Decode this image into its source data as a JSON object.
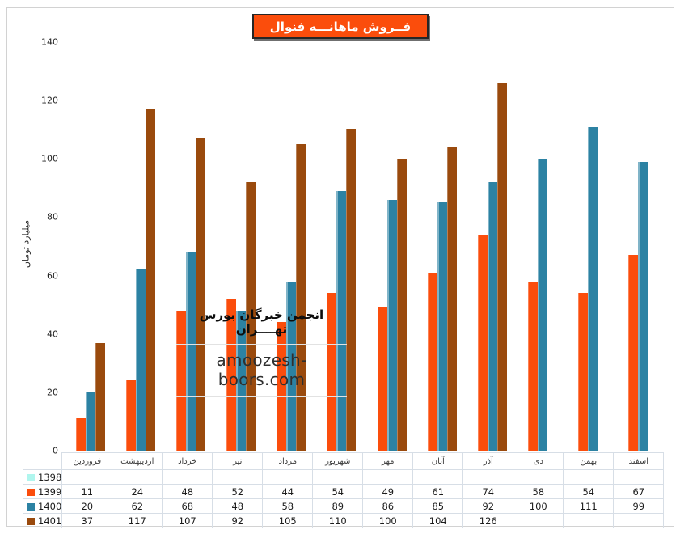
{
  "title": "فــروش ماهانـــه فنوال",
  "y_axis_title": "میلیارد تومان",
  "watermark": {
    "line1": "انجمن خبرگان بورس تهــــران",
    "line2": "amoozesh-boors.com"
  },
  "colors": {
    "title_background": "#fb4d0c",
    "series_1398": "#b0f6ee",
    "series_1399": "#fb4d0c",
    "series_1400": "#2c82a3",
    "series_1401": "#9a4a0d",
    "table_border": "#d7dee6",
    "chart_border": "#d2d2d2"
  },
  "chart_data": {
    "type": "bar",
    "title": "فــروش ماهانـــه فنوال",
    "ylabel": "میلیارد تومان",
    "xlabel": "",
    "ylim": [
      0,
      140
    ],
    "yticks": [
      0,
      20,
      40,
      60,
      80,
      100,
      120,
      140
    ],
    "grid": false,
    "legend_position": "table-left",
    "categories": [
      "فروردین",
      "اردیبهشت",
      "خرداد",
      "تیر",
      "مرداد",
      "شهریور",
      "مهر",
      "آبان",
      "آذر",
      "دی",
      "بهمن",
      "اسفند"
    ],
    "series": [
      {
        "name": "1398",
        "color": "#b0f6ee",
        "values": [
          null,
          null,
          null,
          null,
          null,
          null,
          null,
          null,
          null,
          null,
          null,
          null
        ]
      },
      {
        "name": "1399",
        "color": "#fb4d0c",
        "values": [
          11,
          24,
          48,
          52,
          44,
          54,
          49,
          61,
          74,
          58,
          54,
          67
        ]
      },
      {
        "name": "1400",
        "color": "#2c82a3",
        "values": [
          20,
          62,
          68,
          48,
          58,
          89,
          86,
          85,
          92,
          100,
          111,
          99
        ]
      },
      {
        "name": "1401",
        "color": "#9a4a0d",
        "values": [
          37,
          117,
          107,
          92,
          105,
          110,
          100,
          104,
          126,
          null,
          null,
          null
        ]
      }
    ],
    "selected_cell": {
      "series": "1401",
      "category": "آذر"
    }
  }
}
